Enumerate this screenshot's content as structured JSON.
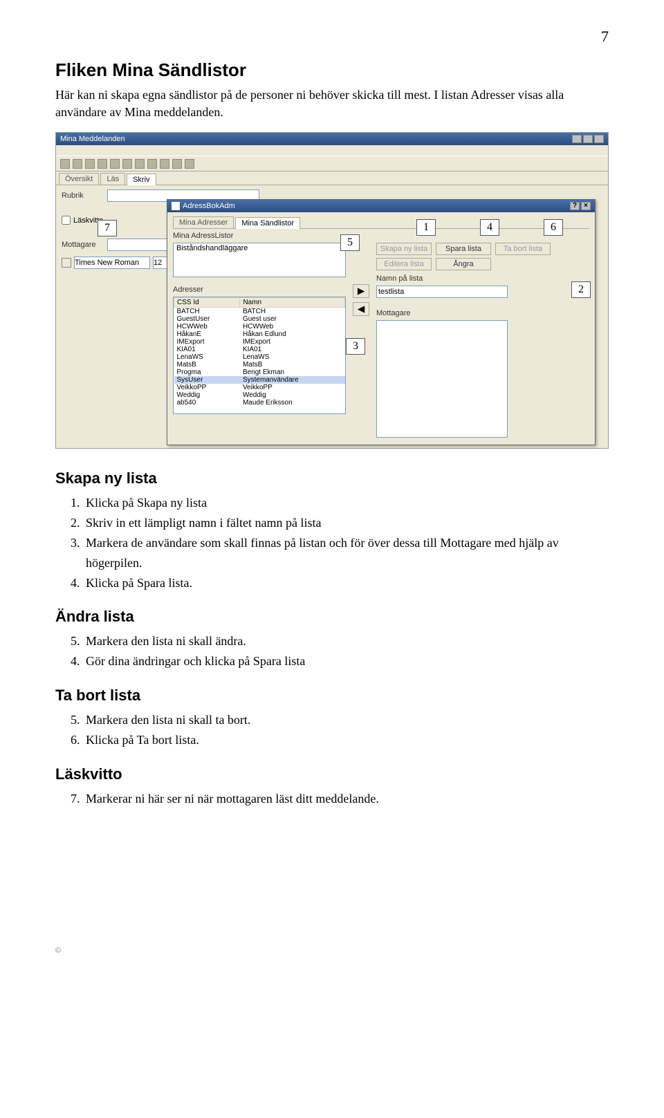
{
  "page": {
    "number": "7"
  },
  "section": {
    "title": "Fliken Mina Sändlistor",
    "intro": "Här kan ni skapa egna sändlistor på de personer ni behöver skicka till mest. I listan Adresser visas alla användare av Mina meddelanden."
  },
  "app": {
    "window_title": "Mina Meddelanden",
    "tabs": {
      "oversikt": "Översikt",
      "las": "Läs",
      "skriv": "Skriv"
    },
    "form": {
      "rubrik_label": "Rubrik",
      "mottagare_label": "Mottagare",
      "laskvitto": "Läskvitto",
      "mottagare_placeholder": "Mottagare",
      "font_name": "Times New Roman",
      "font_size": "12"
    }
  },
  "dialog": {
    "title": "AdressBokAdm",
    "tabs": {
      "mina_adresser": "Mina Adresser",
      "mina_sandlistor": "Mina Sändlistor"
    },
    "sub_label": "Mina AdressListor",
    "lists": {
      "item1": "Biståndshandläggare"
    },
    "buttons": {
      "skapa": "Skapa ny lista",
      "spara": "Spara lista",
      "tabort": "Ta bort lista",
      "editera": "Editera lista",
      "angra": "Ångra"
    },
    "namn_label": "Namn på lista",
    "namn_value": "testlista",
    "adresser_label": "Adresser",
    "mottagare_label": "Mottagare",
    "columns": {
      "id": "CSS Id",
      "namn": "Namn"
    },
    "rows": [
      [
        "BATCH",
        "BATCH"
      ],
      [
        "GuestUser",
        "Guest user"
      ],
      [
        "HCWWeb",
        "HCWWeb"
      ],
      [
        "HåkanE",
        "Håkan Edlund"
      ],
      [
        "IMExport",
        "IMExport"
      ],
      [
        "KIA01",
        "KIA01"
      ],
      [
        "LenaWS",
        "LenaWS"
      ],
      [
        "MatsB",
        "MatsB"
      ],
      [
        "Progma",
        "Bengt Ekman"
      ],
      [
        "SysUser",
        "Systemanvändare"
      ],
      [
        "VeikkoPP",
        "VeikkoPP"
      ],
      [
        "Weddig",
        "Weddig"
      ],
      [
        "ab540",
        "Maude Eriksson"
      ]
    ]
  },
  "callouts": {
    "c1": "1",
    "c2": "2",
    "c3": "3",
    "c4": "4",
    "c5": "5",
    "c6": "6",
    "c7": "7"
  },
  "skapa": {
    "heading": "Skapa ny lista",
    "s1": "Klicka på Skapa ny lista",
    "s2": "Skriv in ett lämpligt namn i fältet namn på lista",
    "s3": "Markera de användare som skall finnas på listan och för över dessa till Mottagare med hjälp av högerpilen.",
    "s4": "Klicka på Spara lista."
  },
  "andra": {
    "heading": "Ändra lista",
    "s5": "Markera den lista ni skall ändra.",
    "s4b": "Gör dina ändringar och klicka på Spara lista"
  },
  "tabort": {
    "heading": "Ta bort lista",
    "s5": "Markera den lista ni skall ta bort.",
    "s6": "Klicka på Ta bort lista."
  },
  "laskvitto": {
    "heading": "Läskvitto",
    "s7": "Markerar ni här ser ni när mottagaren läst ditt meddelande."
  },
  "footer": {
    "copyright": "©"
  }
}
